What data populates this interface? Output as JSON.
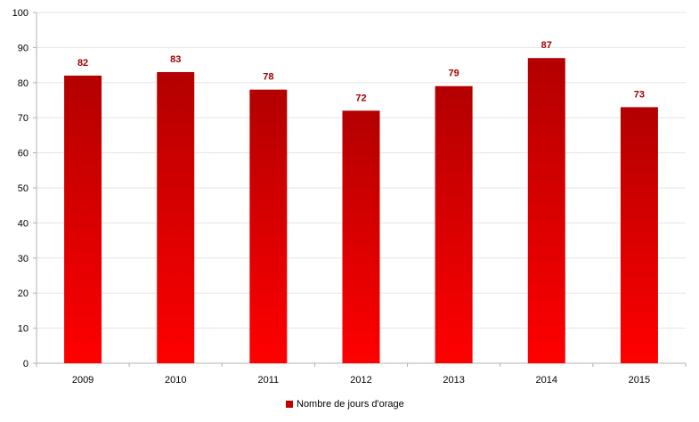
{
  "chart_data": {
    "type": "bar",
    "title": "",
    "xlabel": "",
    "ylabel": "",
    "categories": [
      "2009",
      "2010",
      "2011",
      "2012",
      "2013",
      "2014",
      "2015"
    ],
    "series": [
      {
        "name": "Nombre de jours d'orage",
        "values": [
          82,
          83,
          78,
          72,
          79,
          87,
          73
        ]
      }
    ],
    "ylim": [
      0,
      100
    ],
    "yticks": [
      0,
      10,
      20,
      30,
      40,
      50,
      60,
      70,
      80,
      90,
      100
    ],
    "data_labels": true,
    "grid": true,
    "legend_position": "bottom",
    "colors": {
      "bar_top": "#b30000",
      "bar_bottom": "#ff0000",
      "data_label": "#a00000",
      "legend_swatch": "#c00000",
      "grid": "#e6e6e6",
      "axis": "#b0b0b0"
    }
  }
}
